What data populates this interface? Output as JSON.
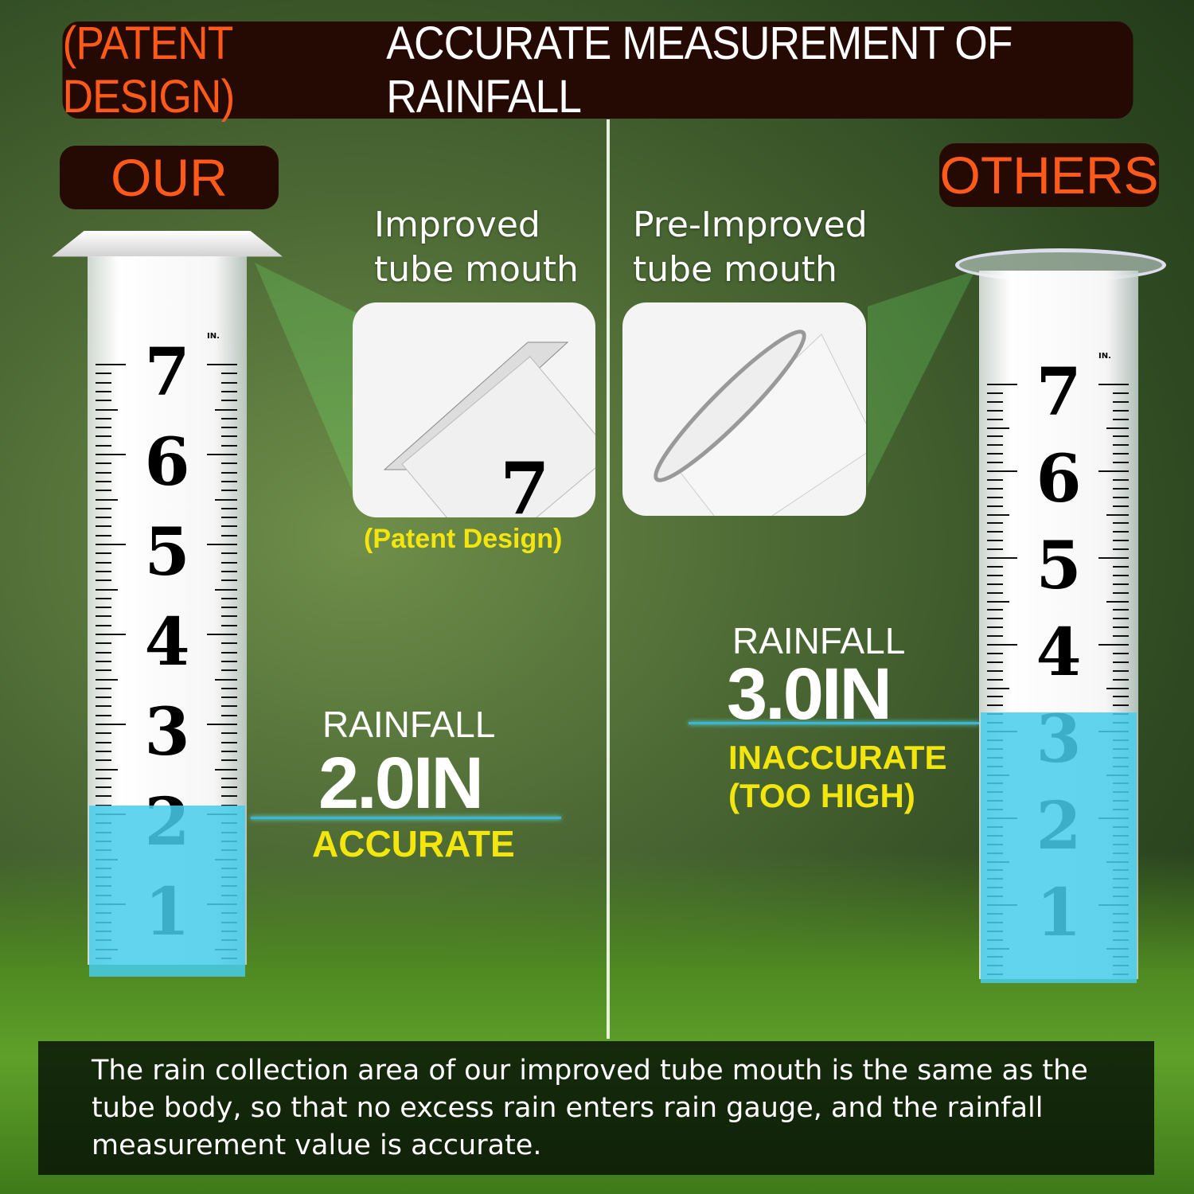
{
  "header": {
    "prefix": "(PATENT DESIGN)",
    "title": "ACCURATE MEASUREMENT OF RAINFALL"
  },
  "left": {
    "tag": "OUR",
    "mouth_label_1": "Improved",
    "mouth_label_2": "tube mouth",
    "patent": "(Patent Design)",
    "rainfall_label": "RAINFALL",
    "rainfall_value": "2.0IN",
    "verdict": "ACCURATE",
    "water_level_in": 2.0
  },
  "right": {
    "tag": "OTHERS",
    "mouth_label_1": "Pre-Improved",
    "mouth_label_2": "tube mouth",
    "rainfall_label": "RAINFALL",
    "rainfall_value": "3.0IN",
    "verdict_1": "INACCURATE",
    "verdict_2": "(TOO HIGH)",
    "water_level_in": 3.0
  },
  "gauge": {
    "numbers": [
      "7",
      "6",
      "5",
      "4",
      "3",
      "2",
      "1"
    ],
    "unit": "IN."
  },
  "footer": {
    "lines": [
      "The rain collection area of our improved tube mouth is the same as the",
      "tube body, so that no excess rain enters rain gauge, and the rainfall",
      "measurement value is accurate."
    ]
  },
  "colors": {
    "orange": "#ff5a1a",
    "yellow": "#f2e60e",
    "water": "#46cdeb",
    "banner": "#240a02"
  }
}
